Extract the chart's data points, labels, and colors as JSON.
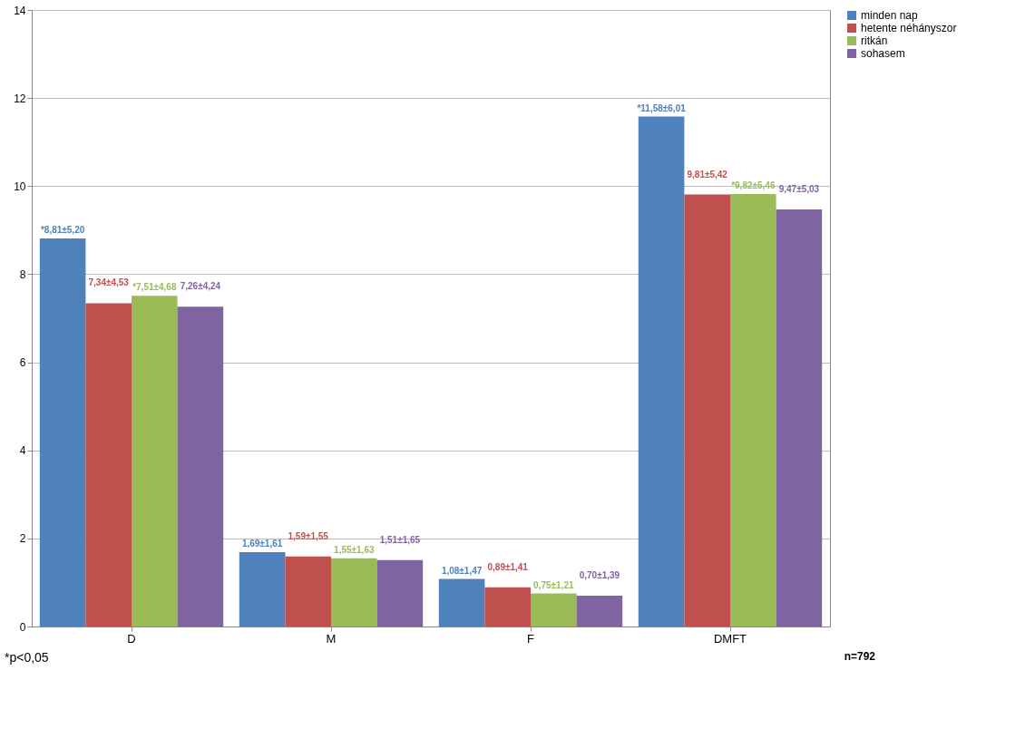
{
  "chart_data": {
    "type": "bar",
    "categories": [
      "D",
      "M",
      "F",
      "DMFT"
    ],
    "series": [
      {
        "name": "minden nap",
        "color": "#4f81bd",
        "values": [
          8.81,
          1.69,
          1.08,
          11.58
        ],
        "value_labels": [
          "*8,81±5,20",
          "1,69±1,61",
          "1,08±1,47",
          "*11,58±6,01"
        ]
      },
      {
        "name": "hetente néhányszor",
        "color": "#c0504d",
        "values": [
          7.34,
          1.59,
          0.89,
          9.81
        ],
        "value_labels": [
          "7,34±4,53",
          "1,59±1,55",
          "0,89±1,41",
          "9,81±5,42"
        ]
      },
      {
        "name": "ritkán",
        "color": "#9bbb59",
        "values": [
          7.51,
          1.55,
          0.75,
          9.82
        ],
        "value_labels": [
          "*7,51±4,68",
          "1,55±1,63",
          "0,75±1,21",
          "*9,82±5,46"
        ]
      },
      {
        "name": "sohasem",
        "color": "#8064a2",
        "values": [
          7.26,
          1.51,
          0.7,
          9.47
        ],
        "value_labels": [
          "7,26±4,24",
          "1,51±1,65",
          "0,70±1,39",
          "9,47±5,03"
        ]
      }
    ],
    "ylim": [
      0,
      14
    ],
    "yticks": [
      0,
      2,
      4,
      6,
      8,
      10,
      12,
      14
    ],
    "grid": "y",
    "legend": "right",
    "annotations": [
      "*p<0,05",
      "n=792"
    ]
  }
}
